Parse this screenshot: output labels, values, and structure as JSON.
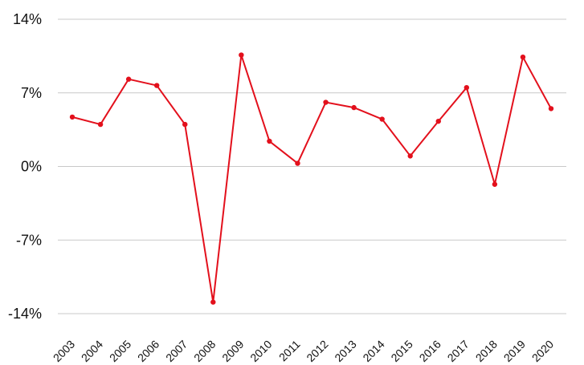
{
  "chart_data": {
    "type": "line",
    "title": "",
    "xlabel": "",
    "ylabel": "",
    "x": [
      "2003",
      "2004",
      "2005",
      "2006",
      "2007",
      "2008",
      "2009",
      "2010",
      "2011",
      "2012",
      "2013",
      "2014",
      "2015",
      "2016",
      "2017",
      "2018",
      "2019",
      "2020"
    ],
    "series": [
      {
        "name": "",
        "color": "#e3101c",
        "values": [
          4.7,
          4.0,
          8.3,
          7.7,
          4.0,
          -12.9,
          10.6,
          2.4,
          0.3,
          6.1,
          5.6,
          4.5,
          1.0,
          4.3,
          7.5,
          -1.7,
          10.4,
          5.5
        ]
      }
    ],
    "ylim": [
      -14,
      14
    ],
    "yticks": [
      14,
      7,
      0,
      -7,
      -14
    ],
    "ytick_labels": [
      "14%",
      "7%",
      "0%",
      "-7%",
      "-14%"
    ],
    "grid": true,
    "legend": "none"
  }
}
